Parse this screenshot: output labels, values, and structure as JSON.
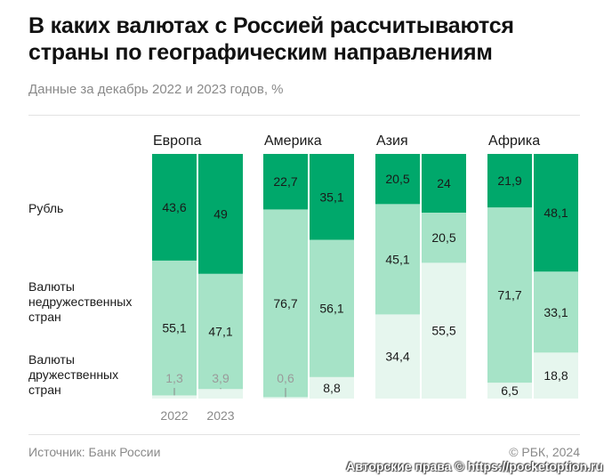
{
  "title": "В каких валютах с Россией рассчитываются страны по географическим направлениям",
  "subtitle": "Данные за декабрь 2022 и 2023 годов, %",
  "source": "Источник: Банк России",
  "copyright": "© РБК, 2024",
  "watermark": "Авторские права © https://pocketoption.ru",
  "row_labels": {
    "ruble": "Рубль",
    "unfriendly": "Валюты\nнедружественных\nстран",
    "friendly": "Валюты\nдружественных\nстран"
  },
  "colors": {
    "ruble": "#00a86b",
    "unfriendly": "#a6e3c7",
    "friendly": "#e6f6ee",
    "friendly_faded_text": "#9a9a9a"
  },
  "chart_data": {
    "type": "bar",
    "stacked": true,
    "normalized": true,
    "ylim": [
      0,
      100
    ],
    "years": [
      "2022",
      "2023"
    ],
    "series_order": [
      "friendly",
      "unfriendly",
      "ruble"
    ],
    "regions": [
      {
        "name": "Европа",
        "bars": [
          {
            "year": "2022",
            "ruble": 43.6,
            "unfriendly": 55.1,
            "friendly": 1.3
          },
          {
            "year": "2023",
            "ruble": 49,
            "unfriendly": 47.1,
            "friendly": 3.9
          }
        ]
      },
      {
        "name": "Америка",
        "bars": [
          {
            "year": "2022",
            "ruble": 22.7,
            "unfriendly": 76.7,
            "friendly": 0.6
          },
          {
            "year": "2023",
            "ruble": 35.1,
            "unfriendly": 56.1,
            "friendly": 8.8
          }
        ]
      },
      {
        "name": "Азия",
        "bars": [
          {
            "year": "2022",
            "ruble": 20.5,
            "unfriendly": 45.1,
            "friendly": 34.4
          },
          {
            "year": "2023",
            "ruble": 24,
            "unfriendly": 20.5,
            "friendly": 55.5
          }
        ]
      },
      {
        "name": "Африка",
        "bars": [
          {
            "year": "2022",
            "ruble": 21.9,
            "unfriendly": 71.7,
            "friendly": 6.5
          },
          {
            "year": "2023",
            "ruble": 48.1,
            "unfriendly": 33.1,
            "friendly": 18.8
          }
        ]
      }
    ],
    "labels": [
      {
        "region": 0,
        "bar": 0,
        "series": "ruble",
        "text": "43,6"
      },
      {
        "region": 0,
        "bar": 0,
        "series": "unfriendly",
        "text": "55,1"
      },
      {
        "region": 0,
        "bar": 0,
        "series": "friendly",
        "text": "1,3",
        "outside": true
      },
      {
        "region": 0,
        "bar": 1,
        "series": "ruble",
        "text": "49"
      },
      {
        "region": 0,
        "bar": 1,
        "series": "unfriendly",
        "text": "47,1"
      },
      {
        "region": 0,
        "bar": 1,
        "series": "friendly",
        "text": "3,9",
        "outside": true
      },
      {
        "region": 1,
        "bar": 0,
        "series": "ruble",
        "text": "22,7"
      },
      {
        "region": 1,
        "bar": 0,
        "series": "unfriendly",
        "text": "76,7"
      },
      {
        "region": 1,
        "bar": 0,
        "series": "friendly",
        "text": "0,6",
        "outside": true
      },
      {
        "region": 1,
        "bar": 1,
        "series": "ruble",
        "text": "35,1"
      },
      {
        "region": 1,
        "bar": 1,
        "series": "unfriendly",
        "text": "56,1"
      },
      {
        "region": 1,
        "bar": 1,
        "series": "friendly",
        "text": "8,8"
      },
      {
        "region": 2,
        "bar": 0,
        "series": "ruble",
        "text": "20,5"
      },
      {
        "region": 2,
        "bar": 0,
        "series": "unfriendly",
        "text": "45,1"
      },
      {
        "region": 2,
        "bar": 0,
        "series": "friendly",
        "text": "34,4"
      },
      {
        "region": 2,
        "bar": 1,
        "series": "ruble",
        "text": "24"
      },
      {
        "region": 2,
        "bar": 1,
        "series": "unfriendly",
        "text": "20,5"
      },
      {
        "region": 2,
        "bar": 1,
        "series": "friendly",
        "text": "55,5"
      },
      {
        "region": 3,
        "bar": 0,
        "series": "ruble",
        "text": "21,9"
      },
      {
        "region": 3,
        "bar": 0,
        "series": "unfriendly",
        "text": "71,7"
      },
      {
        "region": 3,
        "bar": 0,
        "series": "friendly",
        "text": "6,5"
      },
      {
        "region": 3,
        "bar": 1,
        "series": "ruble",
        "text": "48,1"
      },
      {
        "region": 3,
        "bar": 1,
        "series": "unfriendly",
        "text": "33,1"
      },
      {
        "region": 3,
        "bar": 1,
        "series": "friendly",
        "text": "18,8"
      }
    ]
  }
}
